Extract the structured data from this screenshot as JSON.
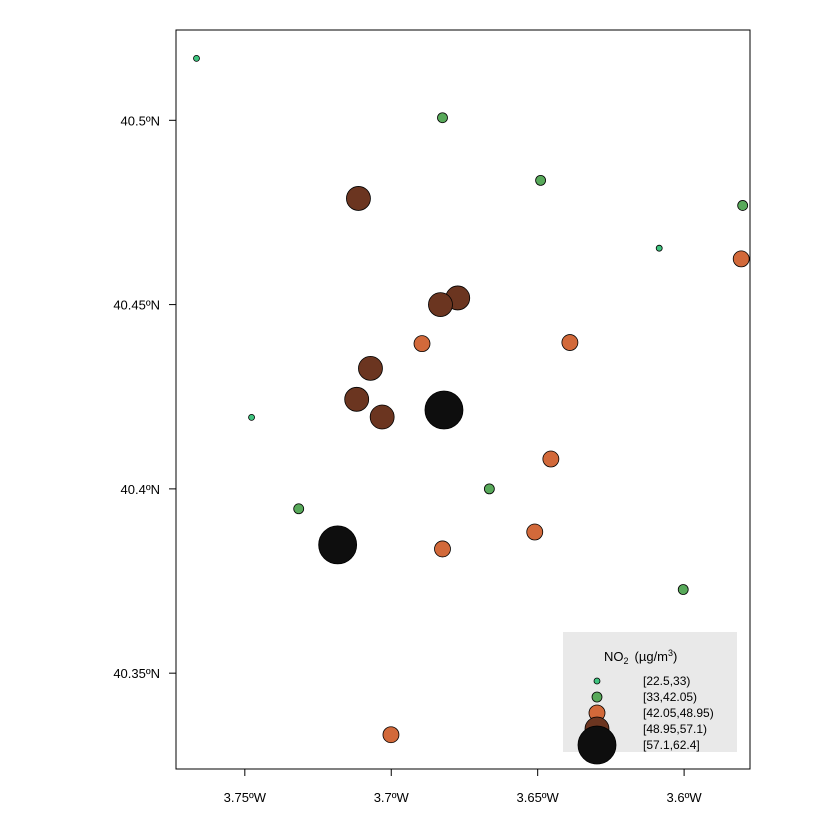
{
  "chart_data": {
    "type": "scatter",
    "title": "",
    "xlabel": "",
    "ylabel": "",
    "xlim": [
      -3.7735,
      -3.5775
    ],
    "ylim": [
      40.324,
      40.5245
    ],
    "grid": false,
    "legend_placement": "bottom-right",
    "x_ticks": [
      {
        "value": -3.75,
        "label": "3.75ºW"
      },
      {
        "value": -3.7,
        "label": "3.7ºW"
      },
      {
        "value": -3.65,
        "label": "3.65ºW"
      },
      {
        "value": -3.6,
        "label": "3.6ºW"
      }
    ],
    "y_ticks": [
      {
        "value": 40.35,
        "label": "40.35ºN"
      },
      {
        "value": 40.4,
        "label": "40.4ºN"
      },
      {
        "value": 40.45,
        "label": "40.45ºN"
      },
      {
        "value": 40.5,
        "label": "40.5ºN"
      }
    ],
    "legend": {
      "title_main": "NO",
      "title_sub": "2",
      "title_unit": "(µg/m",
      "title_sup": "3",
      "title_close": ")",
      "classes": [
        {
          "label": "[22.5,33)",
          "color": "#3fc47f",
          "level": 1
        },
        {
          "label": "[33,42.05)",
          "color": "#58a95a",
          "level": 2
        },
        {
          "label": "[42.05,48.95)",
          "color": "#d2693a",
          "level": 3
        },
        {
          "label": "[48.95,57.1)",
          "color": "#6b3520",
          "level": 4
        },
        {
          "label": "[57.1,62.4]",
          "color": "#0e0e0e",
          "level": 5
        }
      ]
    },
    "points": [
      {
        "lon": -3.7665,
        "lat": 40.5168,
        "class": 0
      },
      {
        "lon": -3.6825,
        "lat": 40.5007,
        "class": 1
      },
      {
        "lon": -3.649,
        "lat": 40.4837,
        "class": 1
      },
      {
        "lon": -3.58,
        "lat": 40.4769,
        "class": 1
      },
      {
        "lon": -3.7112,
        "lat": 40.4788,
        "class": 3
      },
      {
        "lon": -3.6085,
        "lat": 40.4653,
        "class": 0
      },
      {
        "lon": -3.5805,
        "lat": 40.4624,
        "class": 2
      },
      {
        "lon": -3.6773,
        "lat": 40.4518,
        "class": 3
      },
      {
        "lon": -3.6832,
        "lat": 40.45,
        "class": 3
      },
      {
        "lon": -3.6895,
        "lat": 40.4394,
        "class": 2
      },
      {
        "lon": -3.639,
        "lat": 40.4397,
        "class": 2
      },
      {
        "lon": -3.7071,
        "lat": 40.4327,
        "class": 3
      },
      {
        "lon": -3.7118,
        "lat": 40.4243,
        "class": 3
      },
      {
        "lon": -3.682,
        "lat": 40.4214,
        "class": 4
      },
      {
        "lon": -3.7477,
        "lat": 40.4194,
        "class": 0
      },
      {
        "lon": -3.7031,
        "lat": 40.4195,
        "class": 3
      },
      {
        "lon": -3.6455,
        "lat": 40.4081,
        "class": 2
      },
      {
        "lon": -3.6665,
        "lat": 40.4,
        "class": 1
      },
      {
        "lon": -3.7316,
        "lat": 40.3946,
        "class": 1
      },
      {
        "lon": -3.651,
        "lat": 40.3883,
        "class": 2
      },
      {
        "lon": -3.7183,
        "lat": 40.3848,
        "class": 4
      },
      {
        "lon": -3.6825,
        "lat": 40.3837,
        "class": 2
      },
      {
        "lon": -3.6003,
        "lat": 40.3727,
        "class": 1
      },
      {
        "lon": -3.7001,
        "lat": 40.3333,
        "class": 2
      }
    ]
  }
}
